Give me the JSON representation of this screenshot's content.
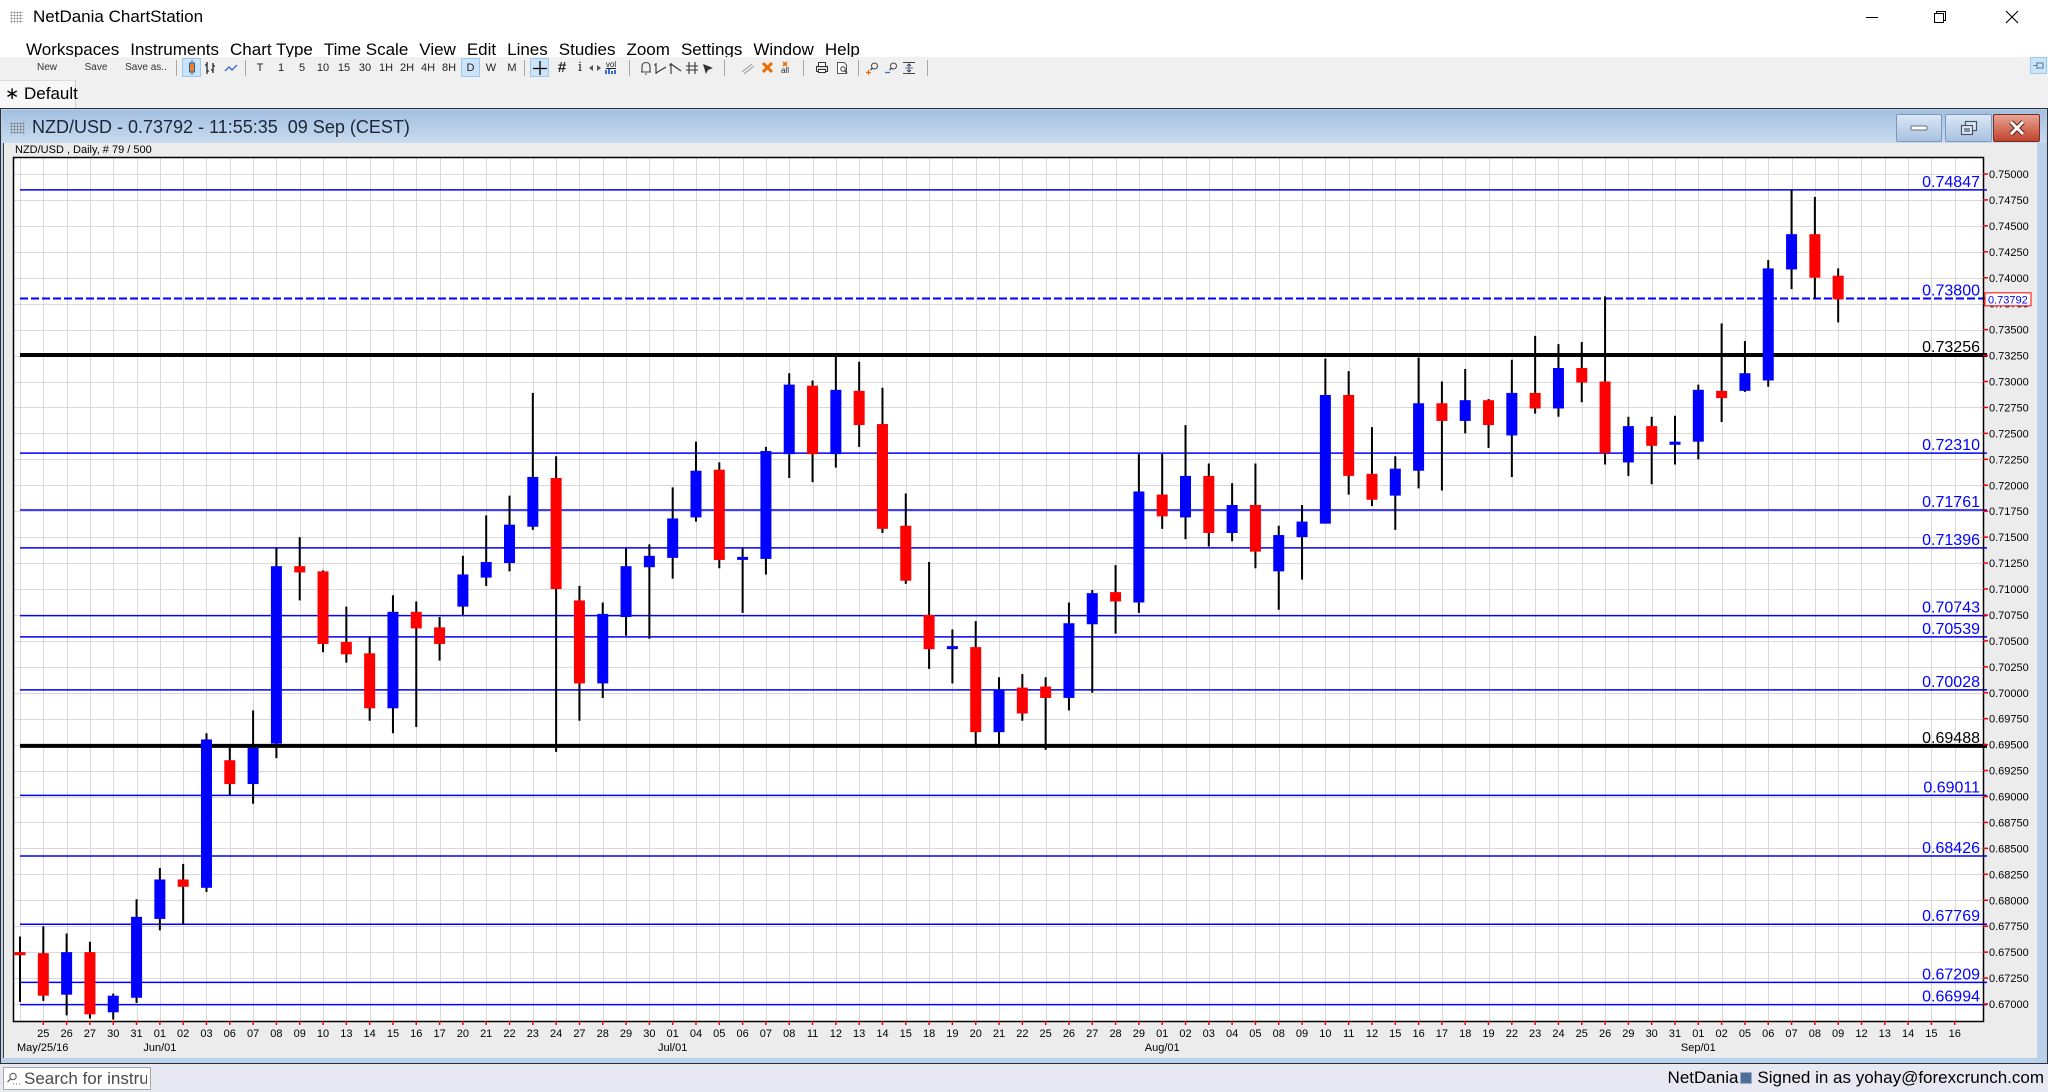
{
  "app": {
    "title": "NetDania ChartStation",
    "icon": "app-grid-icon"
  },
  "window_controls": [
    "minimize-icon",
    "restore-icon",
    "close-icon"
  ],
  "menu": {
    "items": [
      "Workspaces",
      "Instruments",
      "Chart Type",
      "Time Scale",
      "View",
      "Edit",
      "Lines",
      "Studies",
      "Zoom",
      "Settings",
      "Window",
      "Help"
    ]
  },
  "toolbar": {
    "file_buttons": [
      "New",
      "Save",
      "Save as.."
    ],
    "chart_type_icons": [
      "candlestick-icon",
      "ohlc-bars-icon",
      "line-chart-icon"
    ],
    "selected_chart_type": "candlestick-icon",
    "timeframes": [
      "T",
      "1",
      "5",
      "10",
      "15",
      "30",
      "1H",
      "2H",
      "4H",
      "8H",
      "D",
      "W",
      "M"
    ],
    "selected_timeframe": "D",
    "view_tools": [
      "crosshair-icon",
      "grid-icon",
      "info-icon",
      "scroll-icon",
      "volume-icon"
    ],
    "selected_view_tool": "crosshair-icon",
    "grid_label": "#",
    "info_label": "i",
    "vol_label": "vol",
    "drawing_tools": [
      "alert-bell-icon",
      "trend-line-icon",
      "ray-line-icon",
      "channel-icon",
      "arrow-icon"
    ],
    "edit_tools": [
      "parallel-line-icon",
      "delete-icon",
      "delete-all-icon"
    ],
    "delete_all_label": "all",
    "print_tools": [
      "print-icon",
      "print-preview-icon"
    ],
    "zoom_tools": [
      "zoom-in-icon",
      "zoom-out-icon",
      "zoom-fit-icon"
    ],
    "pin_icon": "pin-icon"
  },
  "tabs": [
    {
      "marker": "∗",
      "label": "Default",
      "active": true
    }
  ],
  "chart_window": {
    "title": "NZD/USD - 0.73792 - 11:55:35  09 Sep (CEST)",
    "symbol": "NZD/USD",
    "last_price": "0.73792",
    "time": "11:55:35",
    "date": "09 Sep (CEST)",
    "header": "NZD/USD , Daily, # 79 / 500",
    "controls": [
      "minimize-icon",
      "restore-icon",
      "close-icon"
    ]
  },
  "status_bar": {
    "search_icon": "search-icon",
    "search_placeholder": "Search for instrun",
    "brand": "NetDania",
    "signed_in": "Signed in as yohay@forexcrunch.com"
  },
  "colors": {
    "up_candle": "#0000ff",
    "down_candle": "#ff0000",
    "wick": "#000000",
    "grid": "#d9d9d9",
    "axis_tick": "#ff0000",
    "support_line": "#0000ff",
    "key_level": "#000000",
    "title_bar_top": "#a2bfe1",
    "title_bar_bottom": "#c9dbef",
    "close_button": "#c0432e"
  },
  "chart_data": {
    "type": "candlestick",
    "title": "NZD/USD , Daily, # 79 / 500",
    "symbol": "NZD/USD",
    "interval": "Daily",
    "bars_shown": 79,
    "bars_total": 500,
    "xlabel": "",
    "ylabel": "",
    "grid": true,
    "legend": null,
    "categories": [
      "2016-05-24",
      "2016-05-25",
      "2016-05-26",
      "2016-05-27",
      "2016-05-30",
      "2016-05-31",
      "2016-06-01",
      "2016-06-02",
      "2016-06-03",
      "2016-06-06",
      "2016-06-07",
      "2016-06-08",
      "2016-06-09",
      "2016-06-10",
      "2016-06-13",
      "2016-06-14",
      "2016-06-15",
      "2016-06-16",
      "2016-06-17",
      "2016-06-20",
      "2016-06-21",
      "2016-06-22",
      "2016-06-23",
      "2016-06-24",
      "2016-06-27",
      "2016-06-28",
      "2016-06-29",
      "2016-06-30",
      "2016-07-01",
      "2016-07-04",
      "2016-07-05",
      "2016-07-06",
      "2016-07-07",
      "2016-07-08",
      "2016-07-11",
      "2016-07-12",
      "2016-07-13",
      "2016-07-14",
      "2016-07-15",
      "2016-07-18",
      "2016-07-19",
      "2016-07-20",
      "2016-07-21",
      "2016-07-22",
      "2016-07-25",
      "2016-07-26",
      "2016-07-27",
      "2016-07-28",
      "2016-07-29",
      "2016-08-01",
      "2016-08-02",
      "2016-08-03",
      "2016-08-04",
      "2016-08-05",
      "2016-08-08",
      "2016-08-09",
      "2016-08-10",
      "2016-08-11",
      "2016-08-12",
      "2016-08-15",
      "2016-08-16",
      "2016-08-17",
      "2016-08-18",
      "2016-08-19",
      "2016-08-22",
      "2016-08-23",
      "2016-08-24",
      "2016-08-25",
      "2016-08-26",
      "2016-08-29",
      "2016-08-30",
      "2016-08-31",
      "2016-09-01",
      "2016-09-02",
      "2016-09-05",
      "2016-09-06",
      "2016-09-07",
      "2016-09-08",
      "2016-09-09"
    ],
    "series": [
      {
        "name": "NZD/USD",
        "open": [
          0.675,
          0.6749,
          0.6709,
          0.675,
          0.6692,
          0.6706,
          0.6782,
          0.682,
          0.6812,
          0.6935,
          0.6912,
          0.6951,
          0.7122,
          0.7117,
          0.7049,
          0.7038,
          0.6985,
          0.7078,
          0.7063,
          0.7083,
          0.7111,
          0.7125,
          0.716,
          0.7207,
          0.7089,
          0.7009,
          0.7073,
          0.7121,
          0.713,
          0.7169,
          0.7215,
          0.7129,
          0.7129,
          0.723,
          0.7296,
          0.723,
          0.7291,
          0.7259,
          0.7161,
          0.7075,
          0.7043,
          0.7044,
          0.6962,
          0.7005,
          0.7006,
          0.6995,
          0.7066,
          0.7097,
          0.7087,
          0.7191,
          0.7169,
          0.7209,
          0.7154,
          0.7181,
          0.7117,
          0.715,
          0.7163,
          0.7287,
          0.7211,
          0.719,
          0.7214,
          0.7279,
          0.7262,
          0.7282,
          0.7248,
          0.7289,
          0.7274,
          0.7313,
          0.73,
          0.7222,
          0.7257,
          0.7239,
          0.7242,
          0.7291,
          0.7291,
          0.7301,
          0.7408,
          0.7442,
          0.7402
        ],
        "high": [
          0.6765,
          0.6775,
          0.6768,
          0.676,
          0.671,
          0.6801,
          0.6831,
          0.6835,
          0.6961,
          0.6947,
          0.6983,
          0.714,
          0.715,
          0.7118,
          0.7083,
          0.7054,
          0.7094,
          0.7088,
          0.7073,
          0.7132,
          0.7171,
          0.719,
          0.7289,
          0.7228,
          0.7103,
          0.7087,
          0.7139,
          0.7143,
          0.7198,
          0.7242,
          0.7222,
          0.7139,
          0.7237,
          0.7308,
          0.7301,
          0.7326,
          0.7319,
          0.7294,
          0.7192,
          0.7126,
          0.7061,
          0.7069,
          0.7015,
          0.7018,
          0.7015,
          0.7087,
          0.7099,
          0.7123,
          0.723,
          0.723,
          0.7258,
          0.7221,
          0.7202,
          0.7221,
          0.7161,
          0.7181,
          0.7322,
          0.731,
          0.7256,
          0.7228,
          0.7323,
          0.73,
          0.7312,
          0.7283,
          0.7321,
          0.7344,
          0.7336,
          0.7338,
          0.7382,
          0.7266,
          0.7266,
          0.7267,
          0.7297,
          0.7356,
          0.7339,
          0.7417,
          0.7485,
          0.7478,
          0.7409
        ],
        "low": [
          0.6702,
          0.6703,
          0.6689,
          0.6686,
          0.6685,
          0.6701,
          0.6771,
          0.6777,
          0.6808,
          0.6901,
          0.6893,
          0.6937,
          0.7089,
          0.7039,
          0.7029,
          0.6973,
          0.6961,
          0.6967,
          0.7031,
          0.7075,
          0.7103,
          0.7117,
          0.7157,
          0.6943,
          0.6973,
          0.6995,
          0.7055,
          0.7052,
          0.711,
          0.7165,
          0.712,
          0.7077,
          0.7114,
          0.7207,
          0.7203,
          0.7217,
          0.7237,
          0.7154,
          0.7105,
          0.7023,
          0.7009,
          0.6948,
          0.6948,
          0.6973,
          0.6945,
          0.6983,
          0.7,
          0.7057,
          0.7077,
          0.7158,
          0.7148,
          0.7141,
          0.7146,
          0.712,
          0.708,
          0.7109,
          0.7163,
          0.7191,
          0.718,
          0.7157,
          0.7197,
          0.7195,
          0.725,
          0.7236,
          0.7208,
          0.7269,
          0.7266,
          0.728,
          0.722,
          0.7209,
          0.7201,
          0.722,
          0.7225,
          0.7261,
          0.729,
          0.7295,
          0.7389,
          0.738,
          0.7357
        ],
        "close": [
          0.6747,
          0.6708,
          0.675,
          0.669,
          0.6708,
          0.6784,
          0.682,
          0.6813,
          0.6955,
          0.6912,
          0.6947,
          0.7122,
          0.7116,
          0.7047,
          0.7037,
          0.6985,
          0.7078,
          0.7062,
          0.7047,
          0.7114,
          0.7126,
          0.7162,
          0.7208,
          0.71,
          0.7009,
          0.7076,
          0.7122,
          0.7132,
          0.7168,
          0.7214,
          0.7128,
          0.713,
          0.7233,
          0.7297,
          0.723,
          0.7292,
          0.7258,
          0.7158,
          0.7108,
          0.7042,
          0.7044,
          0.6962,
          0.7003,
          0.698,
          0.6995,
          0.7067,
          0.7096,
          0.7088,
          0.7194,
          0.717,
          0.7209,
          0.7154,
          0.7181,
          0.7136,
          0.7152,
          0.7165,
          0.7287,
          0.7209,
          0.7186,
          0.7216,
          0.7279,
          0.7262,
          0.7282,
          0.7258,
          0.7289,
          0.7274,
          0.7313,
          0.7299,
          0.7231,
          0.7257,
          0.7238,
          0.7242,
          0.7292,
          0.7284,
          0.7308,
          0.7409,
          0.7442,
          0.74,
          0.73792
        ]
      }
    ],
    "horizontal_lines": [
      {
        "value": 0.74847,
        "label": "0.74847",
        "color": "#0000ff",
        "width": 1.5,
        "style": "solid"
      },
      {
        "value": 0.738,
        "label": "0.73800",
        "color": "#0000ff",
        "width": 2,
        "style": "dashed"
      },
      {
        "value": 0.73256,
        "label": "0.73256",
        "color": "#000000",
        "width": 4,
        "style": "solid"
      },
      {
        "value": 0.7231,
        "label": "0.72310",
        "color": "#0000ff",
        "width": 1.5,
        "style": "solid"
      },
      {
        "value": 0.71761,
        "label": "0.71761",
        "color": "#0000ff",
        "width": 1.5,
        "style": "solid"
      },
      {
        "value": 0.71396,
        "label": "0.71396",
        "color": "#0000ff",
        "width": 1.5,
        "style": "solid"
      },
      {
        "value": 0.70743,
        "label": "0.70743",
        "color": "#0000ff",
        "width": 1.5,
        "style": "solid"
      },
      {
        "value": 0.70539,
        "label": "0.70539",
        "color": "#0000ff",
        "width": 1.5,
        "style": "solid"
      },
      {
        "value": 0.70028,
        "label": "0.70028",
        "color": "#0000ff",
        "width": 1.5,
        "style": "solid"
      },
      {
        "value": 0.69488,
        "label": "0.69488",
        "color": "#000000",
        "width": 4,
        "style": "solid"
      },
      {
        "value": 0.69011,
        "label": "0.69011",
        "color": "#0000ff",
        "width": 1.5,
        "style": "solid"
      },
      {
        "value": 0.68426,
        "label": "0.68426",
        "color": "#0000ff",
        "width": 1.5,
        "style": "solid"
      },
      {
        "value": 0.67769,
        "label": "0.67769",
        "color": "#0000ff",
        "width": 1.5,
        "style": "solid"
      },
      {
        "value": 0.67209,
        "label": "0.67209",
        "color": "#0000ff",
        "width": 1.5,
        "style": "solid"
      },
      {
        "value": 0.66994,
        "label": "0.66994",
        "color": "#0000ff",
        "width": 1.5,
        "style": "solid"
      }
    ],
    "current_price": {
      "value": 0.73792,
      "label": "0.73792",
      "color": "#ff0000",
      "text_color": "#0000ff"
    },
    "y_axis": {
      "position": "right",
      "min": 0.67,
      "max": 0.75,
      "step": 0.0025,
      "tick_labels": [
        "0.75000",
        "0.74750",
        "0.74500",
        "0.74250",
        "0.74000",
        "0.73750",
        "0.73500",
        "0.73250",
        "0.73000",
        "0.72750",
        "0.72500",
        "0.72250",
        "0.72000",
        "0.71750",
        "0.71500",
        "0.71250",
        "0.71000",
        "0.70750",
        "0.70500",
        "0.70250",
        "0.70000",
        "0.69750",
        "0.69500",
        "0.69250",
        "0.69000",
        "0.68750",
        "0.68500",
        "0.68250",
        "0.68000",
        "0.67750",
        "0.67500",
        "0.67250",
        "0.67000"
      ]
    },
    "x_axis": {
      "first_labeled_slot": 1,
      "tick_labels": [
        "25",
        "26",
        "27",
        "30",
        "31",
        "01",
        "02",
        "03",
        "06",
        "07",
        "08",
        "09",
        "10",
        "13",
        "14",
        "15",
        "16",
        "17",
        "20",
        "21",
        "22",
        "23",
        "24",
        "27",
        "28",
        "29",
        "30",
        "01",
        "04",
        "05",
        "06",
        "07",
        "08",
        "11",
        "12",
        "13",
        "14",
        "15",
        "18",
        "19",
        "20",
        "21",
        "22",
        "25",
        "26",
        "27",
        "28",
        "29",
        "01",
        "02",
        "03",
        "04",
        "05",
        "08",
        "09",
        "10",
        "11",
        "12",
        "15",
        "16",
        "17",
        "18",
        "19",
        "22",
        "23",
        "24",
        "25",
        "26",
        "29",
        "30",
        "31",
        "01",
        "02",
        "05",
        "06",
        "07",
        "08",
        "09",
        "12",
        "13",
        "14",
        "15",
        "16"
      ],
      "month_labels": [
        {
          "text": "May/25/16",
          "slot": 1,
          "align": "left"
        },
        {
          "text": "Jun/01",
          "slot": 6,
          "align": "center"
        },
        {
          "text": "Jul/01",
          "slot": 28,
          "align": "center"
        },
        {
          "text": "Aug/01",
          "slot": 49,
          "align": "center"
        },
        {
          "text": "Sep/01",
          "slot": 72,
          "align": "center"
        }
      ]
    }
  }
}
